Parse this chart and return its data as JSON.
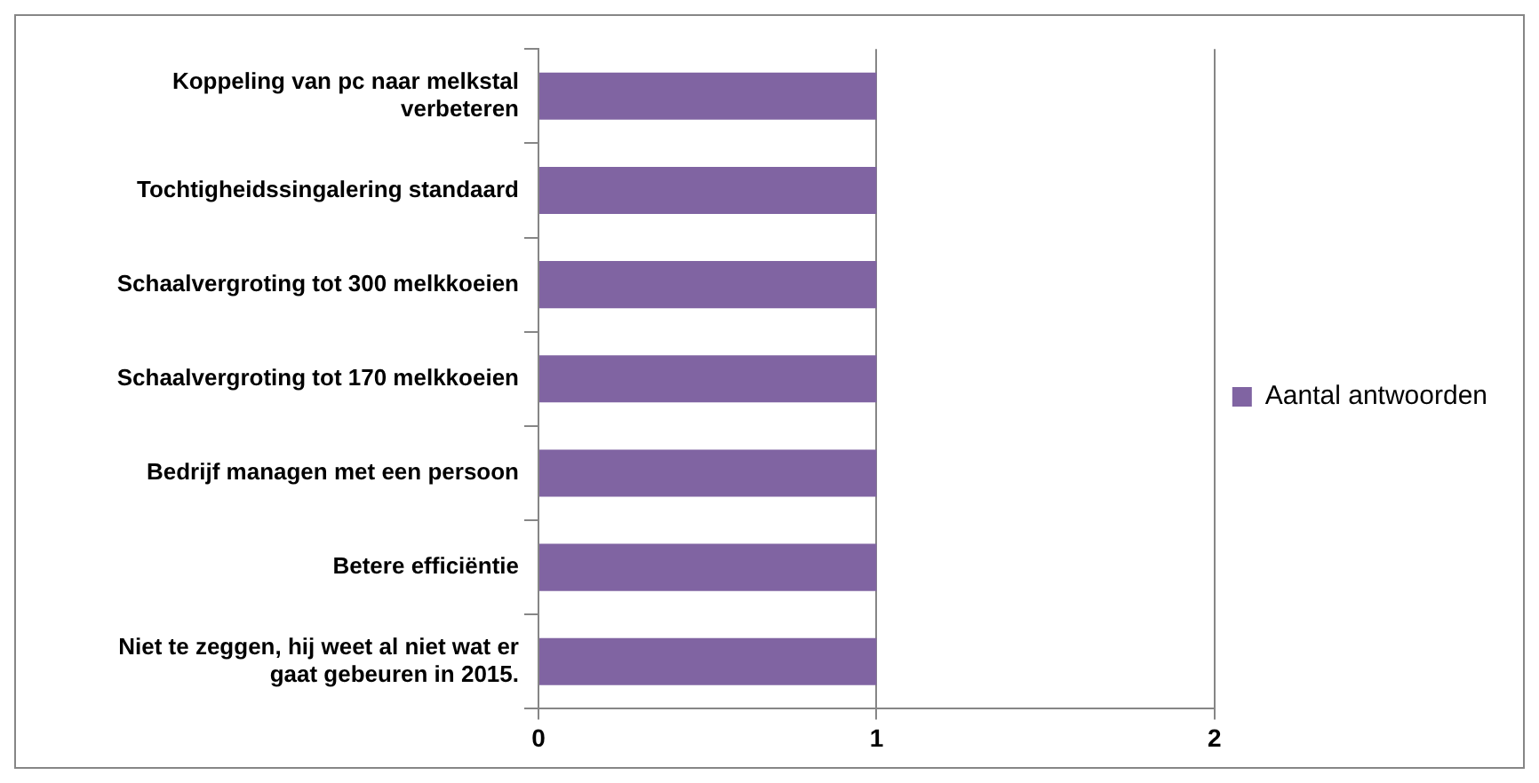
{
  "chart_data": {
    "type": "bar",
    "orientation": "horizontal",
    "categories": [
      "Koppeling van pc naar melkstal verbeteren",
      "Tochtigheidssingalering standaard",
      "Schaalvergroting tot 300 melkkoeien",
      "Schaalvergroting tot 170 melkkoeien",
      "Bedrijf managen met een persoon",
      "Betere efficiëntie",
      "Niet te zeggen, hij weet al niet wat er gaat gebeuren in 2015."
    ],
    "series": [
      {
        "name": "Aantal antwoorden",
        "color": "#8064a2",
        "values": [
          1,
          1,
          1,
          1,
          1,
          1,
          1
        ]
      }
    ],
    "xlim": [
      0,
      2
    ],
    "xticks": [
      0,
      1,
      2
    ],
    "grid": "x",
    "legend": "right"
  }
}
